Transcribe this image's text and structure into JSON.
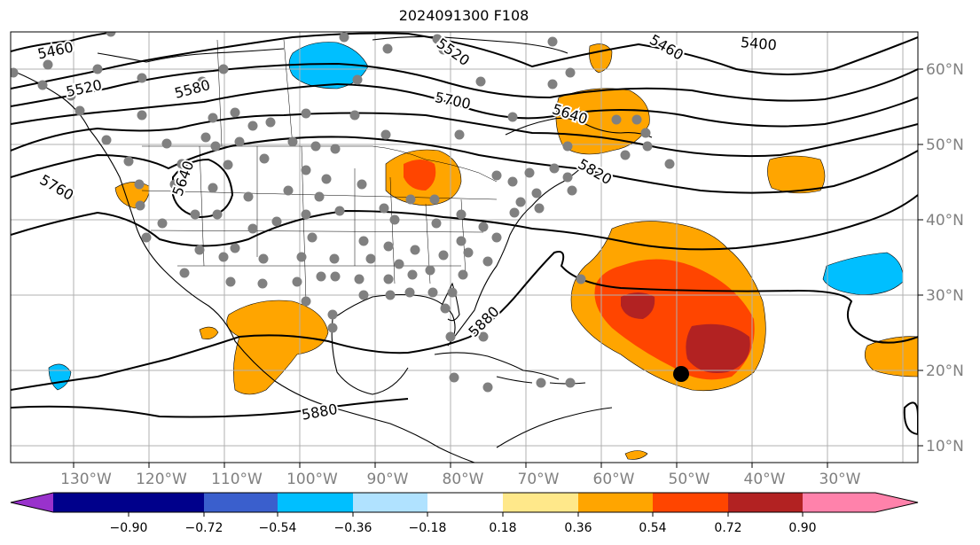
{
  "title": "2024091300 F108",
  "map": {
    "longitude_labels": [
      "130°W",
      "120°W",
      "110°W",
      "100°W",
      "90°W",
      "80°W",
      "70°W",
      "60°W",
      "50°W",
      "40°W",
      "30°W"
    ],
    "latitude_labels": [
      "60°N",
      "50°N",
      "40°N",
      "30°N",
      "20°N",
      "10°N"
    ],
    "contour_labels": [
      "5460",
      "5520",
      "5580",
      "5640",
      "5700",
      "5760",
      "5820",
      "5880",
      "5400",
      "5460",
      "5520",
      "5640",
      "5820",
      "5880"
    ],
    "marker": "storm-center-dot"
  },
  "colorbar": {
    "ticks": [
      "−0.90",
      "−0.72",
      "−0.54",
      "−0.36",
      "−0.18",
      "0.18",
      "0.36",
      "0.54",
      "0.72",
      "0.90"
    ],
    "colors": [
      "#9932cc",
      "#00008b",
      "#3a5fcd",
      "#00bfff",
      "#b0e2ff",
      "#ffffff",
      "#ffe88a",
      "#ffa500",
      "#ff4500",
      "#b22222",
      "#ff82ab"
    ]
  }
}
